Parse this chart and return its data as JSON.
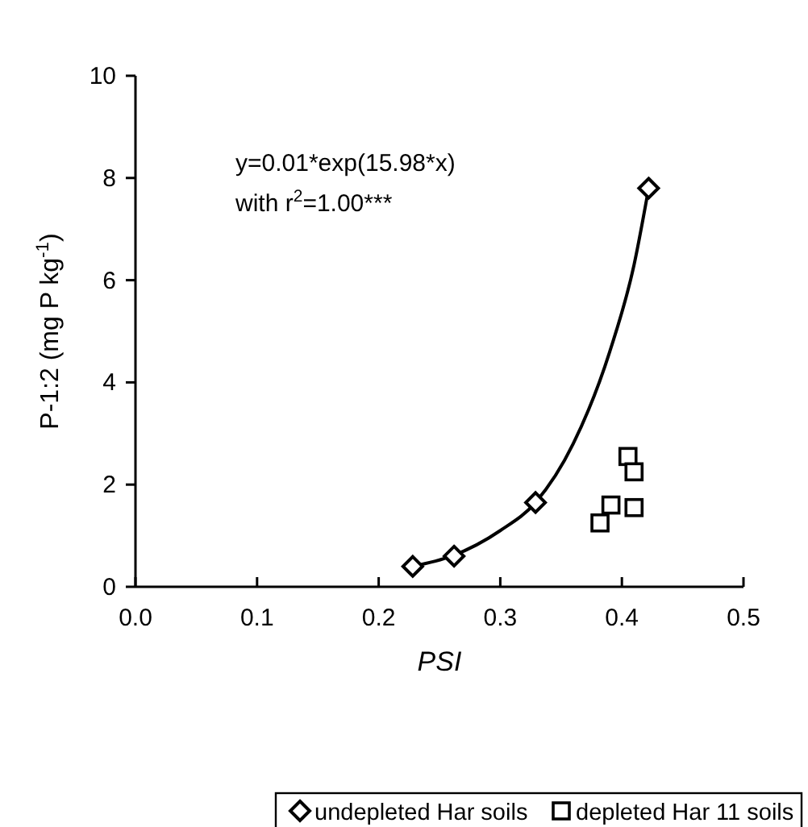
{
  "chart_data": {
    "type": "scatter",
    "xlabel": "PSI",
    "ylabel": "P-1:2 (mg P kg$^{-1}$)",
    "annotations": [
      "y=0.01*exp(15.98*x)",
      "with r$^{2}$=1.00***"
    ],
    "xlim": [
      0,
      0.5
    ],
    "xticks": [
      {
        "value": 0,
        "label": "0.0"
      },
      0.1,
      0.2,
      0.3,
      0.4,
      0.5
    ],
    "ylim": [
      0,
      10
    ],
    "yticks": [
      0,
      2,
      4,
      6,
      8,
      10
    ],
    "grid": false,
    "legend": "bottom",
    "series": [
      {
        "name": "undepleted Har soils",
        "marker": "diamond",
        "color": "#000000",
        "x": [
          0.228,
          0.262,
          0.329,
          0.422
        ],
        "values": [
          0.4,
          0.6,
          1.65,
          7.8
        ]
      },
      {
        "name": "depleted Har 11 soils",
        "marker": "square",
        "color": "#000000",
        "x": [
          0.382,
          0.391,
          0.405,
          0.41,
          0.41
        ],
        "values": [
          1.25,
          1.6,
          2.55,
          2.25,
          1.55
        ]
      },
      {
        "type": "line",
        "color": "#000000",
        "x": [
          0.228,
          0.26,
          0.3,
          0.329,
          0.36,
          0.39,
          0.41,
          0.422
        ],
        "values": [
          0.4,
          0.6,
          1.1,
          1.65,
          2.8,
          4.6,
          6.3,
          7.8
        ]
      }
    ]
  }
}
